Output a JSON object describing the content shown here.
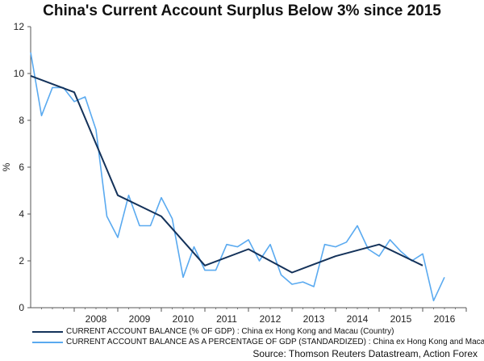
{
  "chart_data": {
    "type": "line",
    "title": "China's Current Account Surplus Below 3% since 2015",
    "ylabel": "%",
    "xlabel": "",
    "ylim": [
      0,
      12
    ],
    "xlim": [
      2007.0,
      2017.0
    ],
    "yticks": [
      0,
      2,
      4,
      6,
      8,
      10,
      12
    ],
    "xticks": [
      {
        "label": "2008",
        "value": 2008
      },
      {
        "label": "2009",
        "value": 2009
      },
      {
        "label": "2010",
        "value": 2010
      },
      {
        "label": "2011",
        "value": 2011
      },
      {
        "label": "2012",
        "value": 2012
      },
      {
        "label": "2013",
        "value": 2013
      },
      {
        "label": "2014",
        "value": 2014
      },
      {
        "label": "2015",
        "value": 2015
      },
      {
        "label": "2016",
        "value": 2016
      }
    ],
    "grid": false,
    "legend_position": "bottom",
    "series": [
      {
        "name": "CURRENT ACCOUNT BALANCE (% OF GDP) : China ex Hong Kong and Macau (Country)",
        "color": "#14325a",
        "points": [
          [
            2007.0,
            9.9
          ],
          [
            2008.0,
            9.2
          ],
          [
            2009.0,
            4.8
          ],
          [
            2010.0,
            3.9
          ],
          [
            2011.0,
            1.8
          ],
          [
            2012.0,
            2.5
          ],
          [
            2013.0,
            1.5
          ],
          [
            2014.0,
            2.2
          ],
          [
            2015.0,
            2.7
          ],
          [
            2016.0,
            1.8
          ]
        ]
      },
      {
        "name": "CURRENT ACCOUNT BALANCE AS A PERCENTAGE OF GDP (STANDARDIZED) : China ex Hong Kong and Macau",
        "color": "#5aaaf0",
        "points": [
          [
            2007.0,
            10.9
          ],
          [
            2007.25,
            8.2
          ],
          [
            2007.5,
            9.4
          ],
          [
            2007.75,
            9.4
          ],
          [
            2008.0,
            8.8
          ],
          [
            2008.25,
            9.0
          ],
          [
            2008.5,
            7.6
          ],
          [
            2008.75,
            3.9
          ],
          [
            2009.0,
            3.0
          ],
          [
            2009.25,
            4.8
          ],
          [
            2009.5,
            3.5
          ],
          [
            2009.75,
            3.5
          ],
          [
            2010.0,
            4.7
          ],
          [
            2010.25,
            3.8
          ],
          [
            2010.5,
            1.3
          ],
          [
            2010.75,
            2.6
          ],
          [
            2011.0,
            1.6
          ],
          [
            2011.25,
            1.6
          ],
          [
            2011.5,
            2.7
          ],
          [
            2011.75,
            2.6
          ],
          [
            2012.0,
            2.9
          ],
          [
            2012.25,
            2.0
          ],
          [
            2012.5,
            2.7
          ],
          [
            2012.75,
            1.4
          ],
          [
            2013.0,
            1.0
          ],
          [
            2013.25,
            1.1
          ],
          [
            2013.5,
            0.9
          ],
          [
            2013.75,
            2.7
          ],
          [
            2014.0,
            2.6
          ],
          [
            2014.25,
            2.8
          ],
          [
            2014.5,
            3.5
          ],
          [
            2014.75,
            2.5
          ],
          [
            2015.0,
            2.2
          ],
          [
            2015.25,
            2.9
          ],
          [
            2015.5,
            2.4
          ],
          [
            2015.75,
            2.0
          ],
          [
            2016.0,
            2.3
          ],
          [
            2016.25,
            0.3
          ],
          [
            2016.5,
            1.3
          ]
        ]
      }
    ],
    "source": "Source: Thomson Reuters Datastream, Action Forex"
  }
}
